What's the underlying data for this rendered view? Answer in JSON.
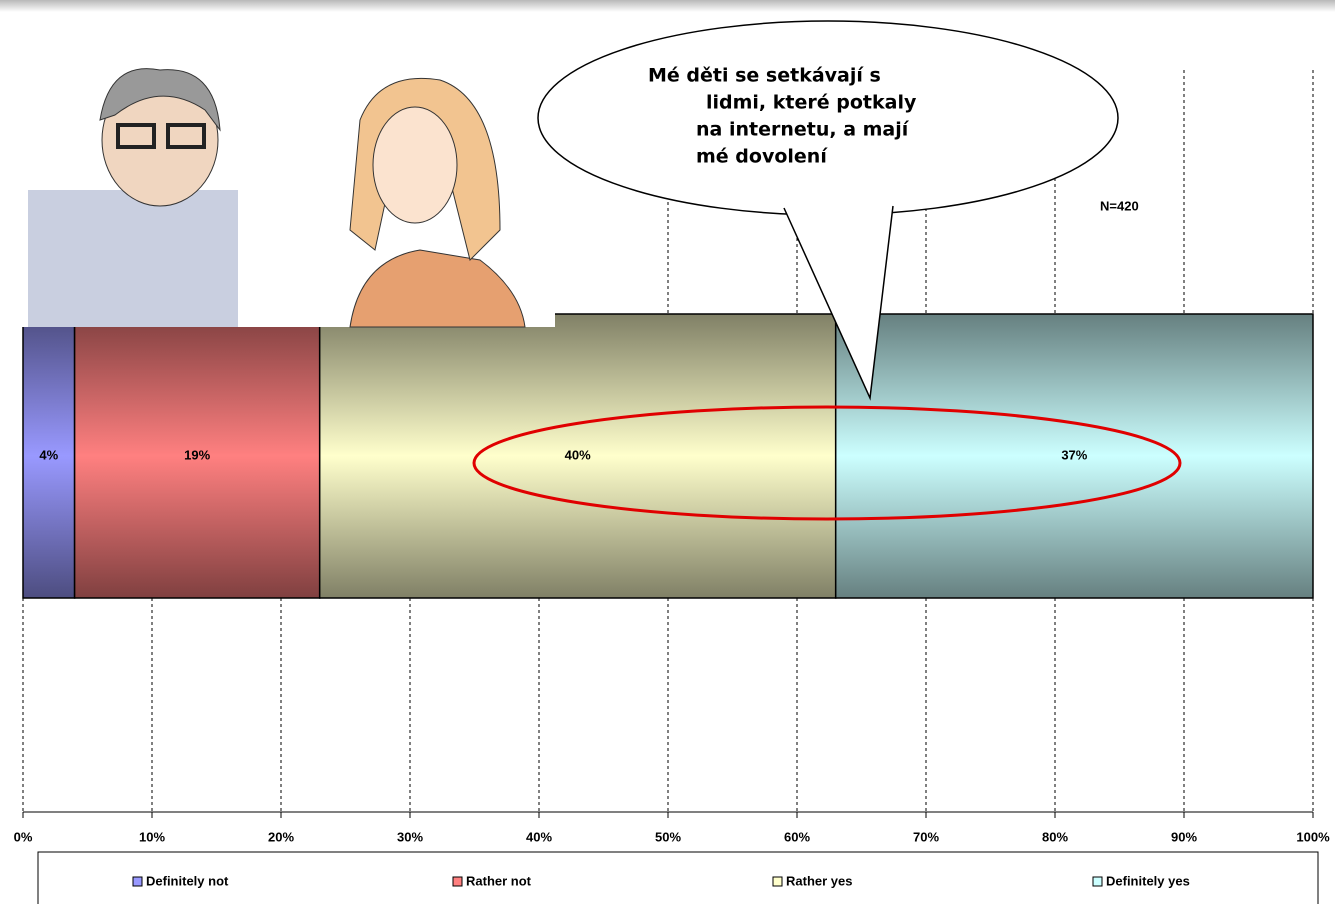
{
  "chart_data": {
    "type": "bar",
    "stacked": true,
    "orientation": "horizontal",
    "categories": [
      null
    ],
    "series": [
      {
        "name": "Definitely not",
        "color": "#9999ff",
        "values": [
          4
        ],
        "value_labels": [
          "4%"
        ]
      },
      {
        "name": "Rather not",
        "color": "#ff8080",
        "values": [
          19
        ],
        "value_labels": [
          "19%"
        ]
      },
      {
        "name": "Rather yes",
        "color": "#ffffcc",
        "values": [
          40
        ],
        "value_labels": [
          "40%"
        ]
      },
      {
        "name": "Definitely yes",
        "color": "#ccffff",
        "values": [
          37
        ],
        "value_labels": [
          "37%"
        ]
      }
    ],
    "xlim": [
      0,
      100
    ],
    "xticks": [
      {
        "value": 0,
        "label": "0%"
      },
      {
        "value": 10,
        "label": "10%"
      },
      {
        "value": 20,
        "label": "20%"
      },
      {
        "value": 30,
        "label": "30%"
      },
      {
        "value": 40,
        "label": "40%"
      },
      {
        "value": 50,
        "label": "50%"
      },
      {
        "value": 60,
        "label": "60%"
      },
      {
        "value": 70,
        "label": "70%"
      },
      {
        "value": 80,
        "label": "80%"
      },
      {
        "value": 90,
        "label": "90%"
      },
      {
        "value": 100,
        "label": "100%"
      }
    ],
    "grid": true,
    "legend": "bottom",
    "annotation": "N=420",
    "callout": [
      "Mé děti se setkávají s",
      "lidmi, které potkaly",
      "na internetu, a mají",
      "mé dovolení"
    ]
  }
}
